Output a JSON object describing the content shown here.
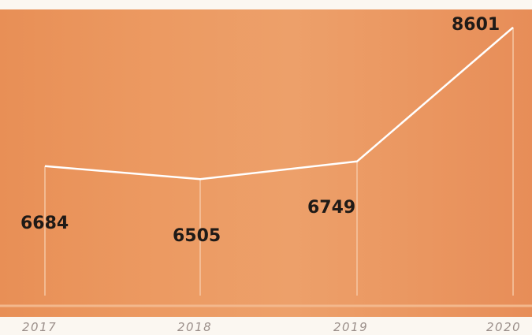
{
  "caption": "",
  "chart_data": {
    "type": "line",
    "title": "",
    "xlabel": "",
    "ylabel": "",
    "categories": [
      "2017",
      "2018",
      "2019",
      "2020"
    ],
    "series": [
      {
        "values": [
          6684,
          6505,
          6749,
          8601
        ]
      }
    ],
    "data_labels": [
      "6684",
      "6505",
      "6749",
      "8601"
    ],
    "ylim": [
      4600,
      8850
    ],
    "grid": false,
    "legend": "none",
    "colors": {
      "background": "#eb9962",
      "line": "#ffffff",
      "label": "#1f1a17",
      "tick": "#9b8f8a"
    }
  }
}
